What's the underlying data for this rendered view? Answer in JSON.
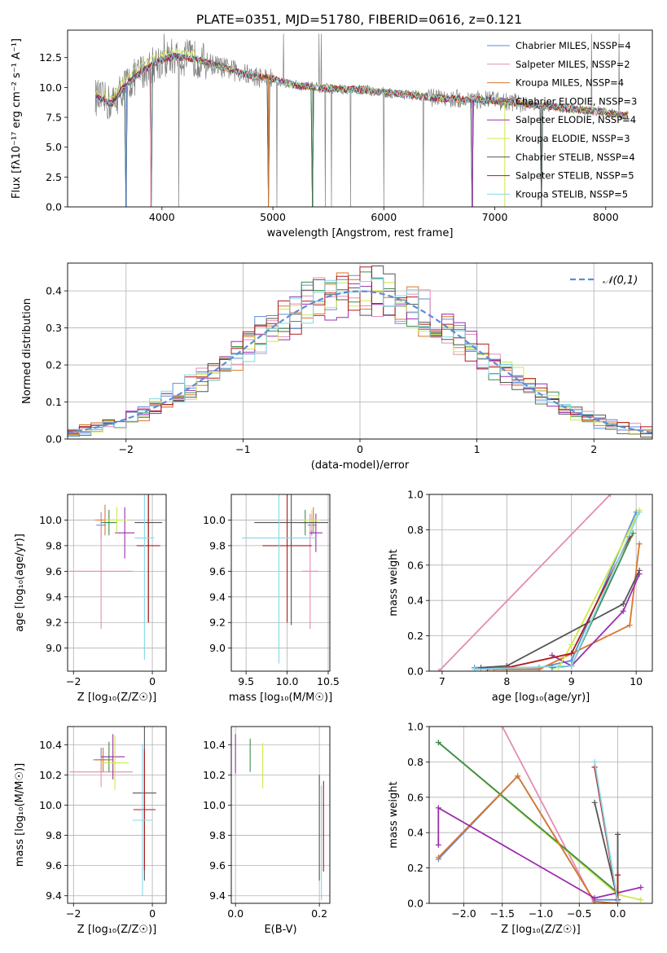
{
  "figure": {
    "title": "PLATE=0351, MJD=51780, FIBERID=0616, z=0.121"
  },
  "colors": {
    "Chabrier MILES": "#5b8dd6",
    "Salpeter MILES": "#e38cb6",
    "Kroupa MILES": "#d9772b",
    "Chabrier ELODIE": "#3d8c4d",
    "Salpeter ELODIE": "#9b2fae",
    "Kroupa ELODIE": "#cfe84a",
    "Chabrier STELIB": "#555555",
    "Salpeter STELIB": "#b01a1a",
    "Kroupa STELIB": "#84d8e4",
    "data": "#808080"
  },
  "chart_data": [
    {
      "id": "spectrum",
      "type": "line",
      "xlabel": "wavelength [Angstrom, rest frame]",
      "ylabel": "Flux [fλ10⁻¹⁷ erg cm⁻² s⁻¹ A⁻¹]",
      "xlim": [
        3150,
        8420
      ],
      "ylim": [
        0,
        14.8
      ],
      "xticks": [
        4000,
        5000,
        6000,
        7000,
        8000
      ],
      "yticks": [
        0.0,
        2.5,
        5.0,
        7.5,
        10.0,
        12.5
      ],
      "ytick_labels": [
        "0.0",
        "2.5",
        "5.0",
        "7.5",
        "10.0",
        "12.5"
      ],
      "grid": false,
      "legend": "top-right",
      "legend_entries": [
        "Chabrier MILES, N_SSP=4",
        "Salpeter MILES, N_SSP=2",
        "Kroupa MILES, N_SSP=4",
        "Chabrier ELODIE, N_SSP=3",
        "Salpeter ELODIE, N_SSP=4",
        "Kroupa ELODIE, N_SSP=3",
        "Chabrier STELIB, N_SSP=4",
        "Salpeter STELIB, N_SSP=5",
        "Kroupa STELIB, N_SSP=5"
      ],
      "continuum_points": [
        [
          3400,
          9.2
        ],
        [
          3550,
          8.6
        ],
        [
          3650,
          10.0
        ],
        [
          3800,
          11.2
        ],
        [
          3950,
          12.1
        ],
        [
          4100,
          12.6
        ],
        [
          4300,
          12.4
        ],
        [
          4500,
          11.8
        ],
        [
          4800,
          11.0
        ],
        [
          5000,
          10.7
        ],
        [
          5200,
          10.2
        ],
        [
          5500,
          9.9
        ],
        [
          5800,
          9.8
        ],
        [
          6200,
          9.4
        ],
        [
          6500,
          9.1
        ],
        [
          7000,
          8.9
        ],
        [
          7500,
          8.4
        ],
        [
          8000,
          7.9
        ],
        [
          8200,
          7.6
        ]
      ],
      "drop_to_zero": [
        3680,
        3900,
        4960,
        5360,
        6800,
        7090,
        7420
      ]
    },
    {
      "id": "residual-hist",
      "type": "step",
      "xlabel": "(data-model)/error",
      "ylabel": "Normed distribution",
      "xlim": [
        -2.5,
        2.5
      ],
      "ylim": [
        0,
        0.475
      ],
      "xticks": [
        -2,
        -1,
        0,
        1,
        2
      ],
      "xtick_labels": [
        "−2",
        "−1",
        "0",
        "1",
        "2"
      ],
      "yticks": [
        0.0,
        0.1,
        0.2,
        0.3,
        0.4
      ],
      "ytick_labels": [
        "0.0",
        "0.1",
        "0.2",
        "0.3",
        "0.4"
      ],
      "grid": true,
      "legend": "top-right",
      "normal_curve_label": "𝒩(0,1)",
      "bin_width": 0.1
    },
    {
      "id": "age-vs-Z",
      "type": "errorbar",
      "xlabel": "Z [log₁₀(Z/Z☉)]",
      "ylabel": "age  [log₁₀(age/yr)]",
      "xlim": [
        -2.15,
        0.35
      ],
      "ylim": [
        8.82,
        10.2
      ],
      "xticks": [
        -2,
        0
      ],
      "xtick_labels": [
        "−2",
        "0"
      ],
      "yticks": [
        9.0,
        9.2,
        9.4,
        9.6,
        9.8,
        10.0
      ],
      "ytick_labels": [
        "9.0",
        "9.2",
        "9.4",
        "9.6",
        "9.8",
        "10.0"
      ],
      "grid": true,
      "points": [
        {
          "model": "Chabrier MILES",
          "x": -1.3,
          "y": 9.96,
          "xerr": 0.12,
          "yerr": 0.1
        },
        {
          "model": "Salpeter MILES",
          "x": -1.3,
          "y": 9.6,
          "xerr": 0.8,
          "yerr": 0.45
        },
        {
          "model": "Kroupa MILES",
          "x": -1.2,
          "y": 10.0,
          "xerr": 0.25,
          "yerr": 0.12
        },
        {
          "model": "Chabrier ELODIE",
          "x": -1.1,
          "y": 9.98,
          "xerr": 0.2,
          "yerr": 0.1
        },
        {
          "model": "Salpeter ELODIE",
          "x": -0.7,
          "y": 9.9,
          "xerr": 0.25,
          "yerr": 0.2
        },
        {
          "model": "Kroupa ELODIE",
          "x": -0.9,
          "y": 10.0,
          "xerr": 0.3,
          "yerr": 0.1
        },
        {
          "model": "Chabrier STELIB",
          "x": -0.1,
          "y": 9.98,
          "xerr": 0.35,
          "yerr": 0.78
        },
        {
          "model": "Salpeter STELIB",
          "x": -0.1,
          "y": 9.8,
          "xerr": 0.3,
          "yerr": 0.6
        },
        {
          "model": "Kroupa STELIB",
          "x": -0.2,
          "y": 9.86,
          "xerr": 0.25,
          "yerr": 0.95
        }
      ]
    },
    {
      "id": "age-vs-mass",
      "type": "errorbar",
      "xlabel": "mass [log₁₀(M/M☉)]",
      "xlim": [
        9.32,
        10.52
      ],
      "ylim": [
        8.82,
        10.2
      ],
      "xticks": [
        9.5,
        10.0,
        10.5
      ],
      "xtick_labels": [
        "9.5",
        "10.0",
        "10.5"
      ],
      "yticks": [
        9.0,
        9.2,
        9.4,
        9.6,
        9.8,
        10.0
      ],
      "ytick_labels": [
        "9.0",
        "9.2",
        "9.4",
        "9.6",
        "9.8",
        "10.0"
      ],
      "grid": true,
      "points": [
        {
          "model": "Chabrier MILES",
          "x": 10.3,
          "y": 9.96,
          "xerr": 0.05,
          "yerr": 0.08
        },
        {
          "model": "Salpeter MILES",
          "x": 10.28,
          "y": 9.6,
          "xerr": 0.1,
          "yerr": 0.45
        },
        {
          "model": "Kroupa MILES",
          "x": 10.32,
          "y": 10.0,
          "xerr": 0.05,
          "yerr": 0.1
        },
        {
          "model": "Chabrier ELODIE",
          "x": 10.22,
          "y": 9.98,
          "xerr": 0.05,
          "yerr": 0.1
        },
        {
          "model": "Salpeter ELODIE",
          "x": 10.35,
          "y": 9.9,
          "xerr": 0.08,
          "yerr": 0.15
        },
        {
          "model": "Kroupa ELODIE",
          "x": 10.3,
          "y": 10.0,
          "xerr": 0.1,
          "yerr": 0.08
        },
        {
          "model": "Chabrier STELIB",
          "x": 10.05,
          "y": 9.98,
          "xerr": 0.45,
          "yerr": 0.8
        },
        {
          "model": "Salpeter STELIB",
          "x": 10.0,
          "y": 9.8,
          "xerr": 0.3,
          "yerr": 0.6
        },
        {
          "model": "Kroupa STELIB",
          "x": 9.9,
          "y": 9.86,
          "xerr": 0.45,
          "yerr": 0.98
        }
      ]
    },
    {
      "id": "weight-vs-age",
      "type": "line",
      "xlabel": "age  [log₁₀(age/yr)]",
      "ylabel": "mass weight",
      "xlim": [
        6.8,
        10.25
      ],
      "ylim": [
        0,
        1.0
      ],
      "xticks": [
        7,
        8,
        9,
        10
      ],
      "xtick_labels": [
        "7",
        "8",
        "9",
        "10"
      ],
      "yticks": [
        0.0,
        0.2,
        0.4,
        0.6,
        0.8,
        1.0
      ],
      "ytick_labels": [
        "0.0",
        "0.2",
        "0.4",
        "0.6",
        "0.8",
        "1.0"
      ],
      "grid": true,
      "series": [
        {
          "name": "Chabrier MILES",
          "points": [
            [
              7.5,
              0.02
            ],
            [
              8.5,
              0.02
            ],
            [
              9.0,
              0.06
            ],
            [
              10.0,
              0.9
            ]
          ]
        },
        {
          "name": "Salpeter MILES",
          "points": [
            [
              6.95,
              0.0
            ],
            [
              9.6,
              1.0
            ]
          ]
        },
        {
          "name": "Kroupa MILES",
          "points": [
            [
              7.8,
              0.01
            ],
            [
              8.5,
              0.01
            ],
            [
              9.9,
              0.26
            ],
            [
              10.05,
              0.72
            ]
          ]
        },
        {
          "name": "Chabrier ELODIE",
          "points": [
            [
              8.7,
              0.02
            ],
            [
              9.0,
              0.03
            ],
            [
              9.95,
              0.78
            ]
          ]
        },
        {
          "name": "Salpeter ELODIE",
          "points": [
            [
              8.7,
              0.09
            ],
            [
              9.0,
              0.03
            ],
            [
              9.8,
              0.34
            ],
            [
              10.05,
              0.55
            ]
          ]
        },
        {
          "name": "Kroupa ELODIE",
          "points": [
            [
              8.8,
              0.02
            ],
            [
              9.0,
              0.15
            ],
            [
              10.05,
              0.91
            ]
          ]
        },
        {
          "name": "Chabrier STELIB",
          "points": [
            [
              7.6,
              0.02
            ],
            [
              8.0,
              0.03
            ],
            [
              9.8,
              0.38
            ],
            [
              10.05,
              0.57
            ]
          ]
        },
        {
          "name": "Salpeter STELIB",
          "points": [
            [
              7.7,
              0.01
            ],
            [
              8.0,
              0.02
            ],
            [
              9.0,
              0.1
            ],
            [
              9.9,
              0.76
            ]
          ]
        },
        {
          "name": "Kroupa STELIB",
          "points": [
            [
              7.5,
              0.01
            ],
            [
              9.0,
              0.03
            ],
            [
              10.05,
              0.9
            ]
          ]
        }
      ]
    },
    {
      "id": "mass-vs-Z",
      "type": "errorbar",
      "xlabel": "Z [log₁₀(Z/Z☉)]",
      "ylabel": "mass [log₁₀(M/M☉)]",
      "xlim": [
        -2.15,
        0.35
      ],
      "ylim": [
        9.35,
        10.52
      ],
      "xticks": [
        -2,
        0
      ],
      "xtick_labels": [
        "−2",
        "0"
      ],
      "yticks": [
        9.4,
        9.6,
        9.8,
        10.0,
        10.2,
        10.4
      ],
      "ytick_labels": [
        "9.4",
        "9.6",
        "9.8",
        "10.0",
        "10.2",
        "10.4"
      ],
      "grid": true,
      "points": [
        {
          "model": "Chabrier MILES",
          "x": -1.3,
          "y": 10.3,
          "xerr": 0.15,
          "yerr": 0.08
        },
        {
          "model": "Salpeter MILES",
          "x": -1.3,
          "y": 10.22,
          "xerr": 0.8,
          "yerr": 0.1
        },
        {
          "model": "Kroupa MILES",
          "x": -1.25,
          "y": 10.3,
          "xerr": 0.25,
          "yerr": 0.08
        },
        {
          "model": "Chabrier ELODIE",
          "x": -1.1,
          "y": 10.32,
          "xerr": 0.2,
          "yerr": 0.1
        },
        {
          "model": "Salpeter ELODIE",
          "x": -1.0,
          "y": 10.32,
          "xerr": 0.3,
          "yerr": 0.15
        },
        {
          "model": "Kroupa ELODIE",
          "x": -0.95,
          "y": 10.28,
          "xerr": 0.35,
          "yerr": 0.18
        },
        {
          "model": "Chabrier STELIB",
          "x": -0.2,
          "y": 10.08,
          "xerr": 0.3,
          "yerr": 0.58
        },
        {
          "model": "Salpeter STELIB",
          "x": -0.2,
          "y": 9.97,
          "xerr": 0.28,
          "yerr": 0.4
        },
        {
          "model": "Kroupa STELIB",
          "x": -0.25,
          "y": 9.9,
          "xerr": 0.25,
          "yerr": 0.5
        }
      ]
    },
    {
      "id": "mass-vs-EBV",
      "type": "errorbar",
      "xlabel": "E(B-V)",
      "xlim": [
        -0.01,
        0.225
      ],
      "ylim": [
        9.35,
        10.52
      ],
      "xticks": [
        0.0,
        0.2
      ],
      "xtick_labels": [
        "0.0",
        "0.2"
      ],
      "yticks": [
        9.4,
        9.6,
        9.8,
        10.0,
        10.2,
        10.4
      ],
      "ytick_labels": [
        "9.4",
        "9.6",
        "9.8",
        "10.0",
        "10.2",
        "10.4"
      ],
      "grid": true,
      "points": [
        {
          "model": "Salpeter ELODIE",
          "x": 0.0,
          "y": 10.34,
          "xerr": 0,
          "yerr": 0.13
        },
        {
          "model": "Chabrier ELODIE",
          "x": 0.035,
          "y": 10.33,
          "xerr": 0,
          "yerr": 0.11
        },
        {
          "model": "Kroupa ELODIE",
          "x": 0.065,
          "y": 10.26,
          "xerr": 0,
          "yerr": 0.15
        },
        {
          "model": "Chabrier STELIB",
          "x": 0.2,
          "y": 9.85,
          "xerr": 0,
          "yerr": 0.35
        },
        {
          "model": "Kroupa STELIB",
          "x": 0.205,
          "y": 9.75,
          "xerr": 0,
          "yerr": 0.38
        },
        {
          "model": "Salpeter STELIB",
          "x": 0.21,
          "y": 9.86,
          "xerr": 0,
          "yerr": 0.3
        }
      ]
    },
    {
      "id": "weight-vs-Z",
      "type": "line",
      "xlabel": "Z [log₁₀(Z/Z☉)]",
      "ylabel": "mass weight",
      "xlim": [
        -2.45,
        0.45
      ],
      "ylim": [
        0,
        1.0
      ],
      "xticks": [
        -2.0,
        -1.5,
        -1.0,
        -0.5,
        0.0
      ],
      "xtick_labels": [
        "−2.0",
        "−1.5",
        "−1.0",
        "−0.5",
        "0.0"
      ],
      "yticks": [
        0.0,
        0.2,
        0.4,
        0.6,
        0.8,
        1.0
      ],
      "ytick_labels": [
        "0.0",
        "0.2",
        "0.4",
        "0.6",
        "0.8",
        "1.0"
      ],
      "grid": true,
      "series": [
        {
          "name": "Salpeter MILES",
          "points": [
            [
              -1.5,
              1.0
            ],
            [
              -0.3,
              0.0
            ]
          ]
        },
        {
          "name": "Kroupa ELODIE",
          "points": [
            [
              -2.33,
              0.91
            ],
            [
              0.0,
              0.05
            ],
            [
              0.3,
              0.02
            ]
          ]
        },
        {
          "name": "Chabrier ELODIE",
          "points": [
            [
              -2.33,
              0.91
            ],
            [
              0.0,
              0.06
            ]
          ]
        },
        {
          "name": "Chabrier MILES",
          "points": [
            [
              -2.33,
              0.25
            ],
            [
              -1.3,
              0.72
            ],
            [
              -0.3,
              0.01
            ],
            [
              -0.3,
              0.02
            ],
            [
              0.0,
              0.02
            ]
          ]
        },
        {
          "name": "Kroupa MILES",
          "points": [
            [
              -2.33,
              0.26
            ],
            [
              -1.3,
              0.72
            ],
            [
              -0.3,
              0.01
            ],
            [
              0.0,
              0.0
            ]
          ]
        },
        {
          "name": "Salpeter ELODIE",
          "points": [
            [
              -2.33,
              0.33
            ],
            [
              -2.33,
              0.54
            ],
            [
              -0.3,
              0.03
            ],
            [
              0.3,
              0.09
            ]
          ]
        },
        {
          "name": "Chabrier STELIB",
          "points": [
            [
              -0.3,
              0.57
            ],
            [
              0.0,
              0.02
            ],
            [
              0.0,
              0.39
            ]
          ]
        },
        {
          "name": "Salpeter STELIB",
          "points": [
            [
              -0.3,
              0.77
            ],
            [
              0.0,
              0.0
            ],
            [
              0.0,
              0.16
            ]
          ]
        },
        {
          "name": "Kroupa STELIB",
          "points": [
            [
              -0.3,
              0.8
            ],
            [
              0.0,
              0.01
            ]
          ]
        }
      ]
    }
  ]
}
